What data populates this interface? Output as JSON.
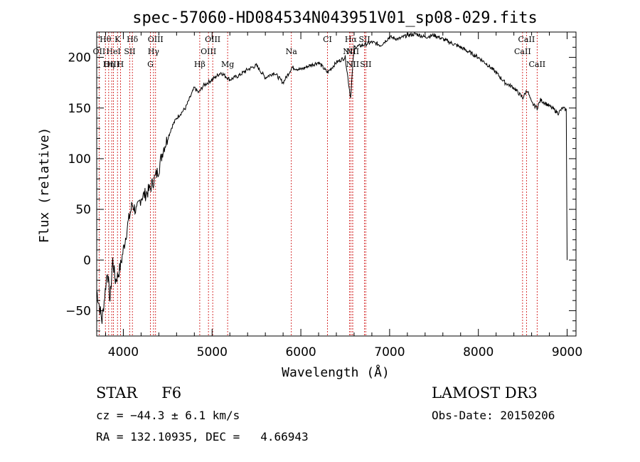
{
  "chart_data": {
    "type": "line",
    "title": "spec-57060-HD084534N043951V01_sp08-029.fits",
    "xlabel": "Wavelength (Å)",
    "ylabel": "Flux (relative)",
    "xlim": [
      3700,
      9100
    ],
    "ylim": [
      -75,
      225
    ],
    "x_ticks": [
      4000,
      5000,
      6000,
      7000,
      8000,
      9000
    ],
    "y_ticks": [
      -50,
      0,
      50,
      100,
      150,
      200
    ],
    "x_tick_labels": [
      "4000",
      "5000",
      "6000",
      "7000",
      "8000",
      "9000"
    ],
    "y_tick_labels": [
      "−50",
      "0",
      "50",
      "100",
      "150",
      "200"
    ],
    "series": [
      {
        "name": "flux",
        "x": [
          3700,
          3730,
          3760,
          3790,
          3820,
          3850,
          3880,
          3910,
          3940,
          3970,
          4000,
          4050,
          4100,
          4150,
          4200,
          4250,
          4300,
          4350,
          4400,
          4450,
          4500,
          4550,
          4600,
          4650,
          4700,
          4750,
          4800,
          4850,
          4900,
          4950,
          5000,
          5100,
          5200,
          5300,
          5400,
          5500,
          5600,
          5700,
          5800,
          5900,
          6000,
          6100,
          6200,
          6300,
          6400,
          6500,
          6560,
          6600,
          6700,
          6800,
          6900,
          7000,
          7100,
          7200,
          7300,
          7400,
          7500,
          7600,
          7700,
          7800,
          7900,
          8000,
          8100,
          8200,
          8300,
          8400,
          8500,
          8550,
          8600,
          8662,
          8700,
          8800,
          8900,
          8950,
          8990,
          9000
        ],
        "y": [
          -30,
          -45,
          -60,
          -35,
          -10,
          -40,
          0,
          -20,
          -15,
          -5,
          10,
          35,
          55,
          48,
          62,
          65,
          70,
          80,
          90,
          110,
          120,
          132,
          140,
          145,
          150,
          160,
          170,
          165,
          172,
          175,
          178,
          185,
          178,
          182,
          188,
          192,
          180,
          185,
          175,
          190,
          188,
          192,
          195,
          185,
          195,
          200,
          160,
          210,
          212,
          215,
          212,
          220,
          218,
          222,
          223,
          220,
          222,
          218,
          214,
          210,
          205,
          200,
          193,
          185,
          175,
          170,
          160,
          168,
          155,
          150,
          158,
          152,
          145,
          150,
          148,
          0
        ]
      }
    ],
    "spectral_lines": [
      {
        "label": "Hθ",
        "wl": 3798,
        "row": 0
      },
      {
        "label": "K",
        "wl": 3934,
        "row": 0
      },
      {
        "label": "Hδ",
        "wl": 4102,
        "row": 0
      },
      {
        "label": "OIII",
        "wl": 4363,
        "row": 0
      },
      {
        "label": "OIII",
        "wl": 5007,
        "row": 0
      },
      {
        "label": "CI",
        "wl": 6300,
        "row": 0
      },
      {
        "label": "Hα",
        "wl": 6563,
        "row": 0
      },
      {
        "label": "SII",
        "wl": 6717,
        "row": 0
      },
      {
        "label": "CaII",
        "wl": 8542,
        "row": 0
      },
      {
        "label": "OII",
        "wl": 3727,
        "row": 1
      },
      {
        "label": "HeI",
        "wl": 3889,
        "row": 1
      },
      {
        "label": "SII",
        "wl": 4072,
        "row": 1
      },
      {
        "label": "Hγ",
        "wl": 4340,
        "row": 1
      },
      {
        "label": "OIII",
        "wl": 4959,
        "row": 1
      },
      {
        "label": "Na",
        "wl": 5893,
        "row": 1
      },
      {
        "label": "NII",
        "wl": 6548,
        "row": 1
      },
      {
        "label": "NII",
        "wl": 6584,
        "row": 1
      },
      {
        "label": "CaII",
        "wl": 8498,
        "row": 1
      },
      {
        "label": "OIII",
        "wl": 3869,
        "row": 2
      },
      {
        "label": "Hη",
        "wl": 3835,
        "row": 2
      },
      {
        "label": "H",
        "wl": 3968,
        "row": 2
      },
      {
        "label": "G",
        "wl": 4305,
        "row": 2
      },
      {
        "label": "Hβ",
        "wl": 4861,
        "row": 2
      },
      {
        "label": "Mg",
        "wl": 5175,
        "row": 2
      },
      {
        "label": "NII",
        "wl": 6584,
        "row": 2
      },
      {
        "label": "SII",
        "wl": 6731,
        "row": 2
      },
      {
        "label": "CaII",
        "wl": 8662,
        "row": 2
      }
    ],
    "grid": false,
    "legend": "none"
  },
  "info": {
    "class_label": "STAR",
    "subclass": "F6",
    "survey": "LAMOST DR3",
    "cz_line": "cz = −44.3 ± 6.1 km/s",
    "obs_date_line": "Obs-Date: 20150206",
    "radec_line": "RA = 132.10935, DEC =   4.66943"
  }
}
